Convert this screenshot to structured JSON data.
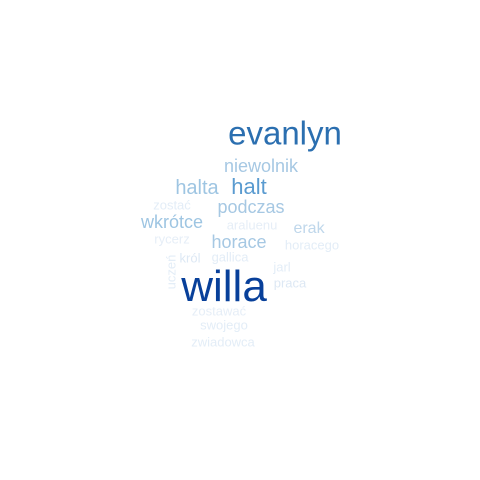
{
  "words": [
    {
      "text": "evanlyn",
      "color": "#2b6fb0"
    },
    {
      "text": "niewolnik",
      "color": "#a6c8e3"
    },
    {
      "text": "halt",
      "color": "#5a9bd0"
    },
    {
      "text": "halta",
      "color": "#9ec5e2"
    },
    {
      "text": "podczas",
      "color": "#a6c8e3"
    },
    {
      "text": "zostać",
      "color": "#e3edf7"
    },
    {
      "text": "wkrótce",
      "color": "#9ec5e2"
    },
    {
      "text": "araluenu",
      "color": "#e6eef7"
    },
    {
      "text": "erak",
      "color": "#bfd7eb"
    },
    {
      "text": "rycerz",
      "color": "#e6eef7"
    },
    {
      "text": "horace",
      "color": "#a6c8e3"
    },
    {
      "text": "horacego",
      "color": "#e3edf7"
    },
    {
      "text": "król",
      "color": "#dde8f4"
    },
    {
      "text": "gallica",
      "color": "#e3edf7"
    },
    {
      "text": "jarl",
      "color": "#e3edf7"
    },
    {
      "text": "uczeń",
      "color": "#e3edf7"
    },
    {
      "text": "willa",
      "color": "#08409a"
    },
    {
      "text": "praca",
      "color": "#dde8f4"
    },
    {
      "text": "zostawać",
      "color": "#e6eef7"
    },
    {
      "text": "swojego",
      "color": "#e3edf7"
    },
    {
      "text": "zwiadowca",
      "color": "#e3edf7"
    }
  ]
}
